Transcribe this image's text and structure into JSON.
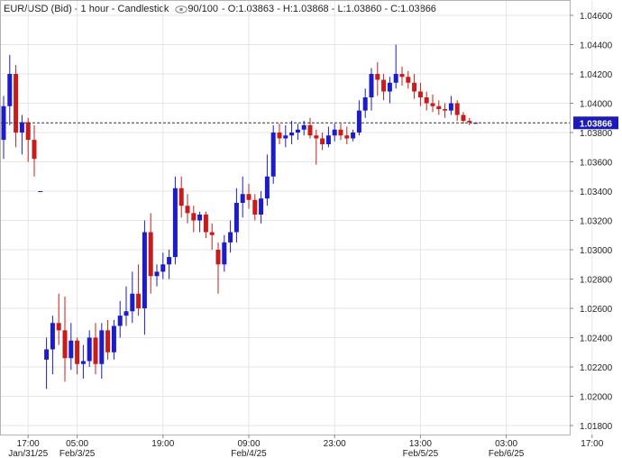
{
  "header": {
    "symbol": "EUR/USD (Bid) - 1 hour - Candlestick",
    "count": "90/100",
    "ohlc": "- O:1.03863 - H:1.03868 - L:1.03860 - C:1.03866"
  },
  "price_label": "1.03866",
  "colors": {
    "up": "#1c1cc8",
    "down": "#c81c1c",
    "grid": "#e6e6e6",
    "badge": "#1c1cb4"
  },
  "chart_data": {
    "type": "candlestick",
    "title": "EUR/USD (Bid) - 1 hour - Candlestick",
    "ylim": [
      1.0175,
      1.048
    ],
    "y_ticks": [
      "1.01800",
      "1.02000",
      "1.02200",
      "1.02400",
      "1.02600",
      "1.02800",
      "1.03000",
      "1.03200",
      "1.03400",
      "1.03600",
      "1.03800",
      "1.04000",
      "1.04200",
      "1.04400",
      "1.04600"
    ],
    "x_ticks": [
      {
        "time": "17:00",
        "date": "Jan/31/25",
        "index": 4
      },
      {
        "time": "05:00",
        "date": "Feb/3/25",
        "index": 12
      },
      {
        "time": "19:00",
        "date": "",
        "index": 26
      },
      {
        "time": "09:00",
        "date": "Feb/4/25",
        "index": 40
      },
      {
        "time": "23:00",
        "date": "",
        "index": 54
      },
      {
        "time": "13:00",
        "date": "Feb/5/25",
        "index": 68
      },
      {
        "time": "03:00",
        "date": "Feb/6/25",
        "index": 82
      },
      {
        "time": "17:00",
        "date": "",
        "index": 96
      }
    ],
    "last_price": 1.03866,
    "candles": [
      {
        "o": 1.0375,
        "h": 1.0405,
        "l": 1.0362,
        "c": 1.0398
      },
      {
        "o": 1.0398,
        "h": 1.0433,
        "l": 1.0385,
        "c": 1.042
      },
      {
        "o": 1.042,
        "h": 1.0426,
        "l": 1.037,
        "c": 1.038
      },
      {
        "o": 1.038,
        "h": 1.0392,
        "l": 1.0365,
        "c": 1.0387
      },
      {
        "o": 1.0387,
        "h": 1.039,
        "l": 1.036,
        "c": 1.0375
      },
      {
        "o": 1.0375,
        "h": 1.0385,
        "l": 1.035,
        "c": 1.0362
      },
      {
        "o": 1.034,
        "h": 1.034,
        "l": 1.034,
        "c": 1.034
      },
      {
        "o": 1.0225,
        "h": 1.024,
        "l": 1.0205,
        "c": 1.0232
      },
      {
        "o": 1.0232,
        "h": 1.0255,
        "l": 1.0215,
        "c": 1.025
      },
      {
        "o": 1.025,
        "h": 1.027,
        "l": 1.0235,
        "c": 1.0245
      },
      {
        "o": 1.0245,
        "h": 1.0268,
        "l": 1.021,
        "c": 1.0226
      },
      {
        "o": 1.0226,
        "h": 1.025,
        "l": 1.0218,
        "c": 1.0238
      },
      {
        "o": 1.0238,
        "h": 1.024,
        "l": 1.0215,
        "c": 1.0222
      },
      {
        "o": 1.0222,
        "h": 1.0235,
        "l": 1.0212,
        "c": 1.0224
      },
      {
        "o": 1.0224,
        "h": 1.0245,
        "l": 1.022,
        "c": 1.024
      },
      {
        "o": 1.024,
        "h": 1.025,
        "l": 1.0215,
        "c": 1.0222
      },
      {
        "o": 1.0222,
        "h": 1.025,
        "l": 1.0212,
        "c": 1.0245
      },
      {
        "o": 1.0245,
        "h": 1.0252,
        "l": 1.0225,
        "c": 1.023
      },
      {
        "o": 1.023,
        "h": 1.0252,
        "l": 1.0225,
        "c": 1.0248
      },
      {
        "o": 1.0248,
        "h": 1.0265,
        "l": 1.024,
        "c": 1.0255
      },
      {
        "o": 1.0255,
        "h": 1.0275,
        "l": 1.0248,
        "c": 1.0258
      },
      {
        "o": 1.0258,
        "h": 1.0285,
        "l": 1.025,
        "c": 1.027
      },
      {
        "o": 1.027,
        "h": 1.029,
        "l": 1.0255,
        "c": 1.026
      },
      {
        "o": 1.026,
        "h": 1.032,
        "l": 1.0242,
        "c": 1.0312
      },
      {
        "o": 1.0312,
        "h": 1.0325,
        "l": 1.027,
        "c": 1.0282
      },
      {
        "o": 1.0282,
        "h": 1.029,
        "l": 1.0275,
        "c": 1.0285
      },
      {
        "o": 1.0285,
        "h": 1.0298,
        "l": 1.028,
        "c": 1.029
      },
      {
        "o": 1.029,
        "h": 1.03,
        "l": 1.028,
        "c": 1.0295
      },
      {
        "o": 1.0295,
        "h": 1.035,
        "l": 1.029,
        "c": 1.0342
      },
      {
        "o": 1.0342,
        "h": 1.035,
        "l": 1.0322,
        "c": 1.033
      },
      {
        "o": 1.033,
        "h": 1.0338,
        "l": 1.0318,
        "c": 1.0325
      },
      {
        "o": 1.0325,
        "h": 1.033,
        "l": 1.0312,
        "c": 1.032
      },
      {
        "o": 1.032,
        "h": 1.0326,
        "l": 1.0312,
        "c": 1.0324
      },
      {
        "o": 1.0324,
        "h": 1.0326,
        "l": 1.0308,
        "c": 1.0312
      },
      {
        "o": 1.0312,
        "h": 1.0318,
        "l": 1.03,
        "c": 1.031
      },
      {
        "o": 1.03,
        "h": 1.0305,
        "l": 1.027,
        "c": 1.029
      },
      {
        "o": 1.029,
        "h": 1.031,
        "l": 1.0285,
        "c": 1.0305
      },
      {
        "o": 1.0305,
        "h": 1.032,
        "l": 1.0298,
        "c": 1.0312
      },
      {
        "o": 1.0312,
        "h": 1.0342,
        "l": 1.0305,
        "c": 1.0332
      },
      {
        "o": 1.0332,
        "h": 1.035,
        "l": 1.0322,
        "c": 1.0338
      },
      {
        "o": 1.0338,
        "h": 1.0345,
        "l": 1.0328,
        "c": 1.0334
      },
      {
        "o": 1.0334,
        "h": 1.0338,
        "l": 1.032,
        "c": 1.0324
      },
      {
        "o": 1.0324,
        "h": 1.034,
        "l": 1.0318,
        "c": 1.0335
      },
      {
        "o": 1.0335,
        "h": 1.0365,
        "l": 1.033,
        "c": 1.035
      },
      {
        "o": 1.035,
        "h": 1.0385,
        "l": 1.0345,
        "c": 1.038
      },
      {
        "o": 1.038,
        "h": 1.0386,
        "l": 1.0372,
        "c": 1.0376
      },
      {
        "o": 1.0376,
        "h": 1.0385,
        "l": 1.037,
        "c": 1.0378
      },
      {
        "o": 1.0378,
        "h": 1.0388,
        "l": 1.0372,
        "c": 1.038
      },
      {
        "o": 1.038,
        "h": 1.0386,
        "l": 1.0375,
        "c": 1.0382
      },
      {
        "o": 1.0382,
        "h": 1.0388,
        "l": 1.0378,
        "c": 1.0385
      },
      {
        "o": 1.0385,
        "h": 1.039,
        "l": 1.0376,
        "c": 1.0378
      },
      {
        "o": 1.0378,
        "h": 1.0382,
        "l": 1.0358,
        "c": 1.0376
      },
      {
        "o": 1.0376,
        "h": 1.038,
        "l": 1.0368,
        "c": 1.0372
      },
      {
        "o": 1.0372,
        "h": 1.0384,
        "l": 1.037,
        "c": 1.0378
      },
      {
        "o": 1.0378,
        "h": 1.0386,
        "l": 1.0374,
        "c": 1.0382
      },
      {
        "o": 1.0382,
        "h": 1.0386,
        "l": 1.0375,
        "c": 1.0378
      },
      {
        "o": 1.0378,
        "h": 1.0384,
        "l": 1.0372,
        "c": 1.0376
      },
      {
        "o": 1.0376,
        "h": 1.0382,
        "l": 1.0374,
        "c": 1.038
      },
      {
        "o": 1.038,
        "h": 1.0402,
        "l": 1.0378,
        "c": 1.0395
      },
      {
        "o": 1.0395,
        "h": 1.041,
        "l": 1.039,
        "c": 1.0404
      },
      {
        "o": 1.0404,
        "h": 1.0424,
        "l": 1.0395,
        "c": 1.042
      },
      {
        "o": 1.042,
        "h": 1.0428,
        "l": 1.0405,
        "c": 1.0416
      },
      {
        "o": 1.0416,
        "h": 1.042,
        "l": 1.0402,
        "c": 1.0408
      },
      {
        "o": 1.0408,
        "h": 1.0418,
        "l": 1.04,
        "c": 1.0414
      },
      {
        "o": 1.0414,
        "h": 1.044,
        "l": 1.041,
        "c": 1.042
      },
      {
        "o": 1.042,
        "h": 1.0425,
        "l": 1.0412,
        "c": 1.0418
      },
      {
        "o": 1.0418,
        "h": 1.0422,
        "l": 1.041,
        "c": 1.0414
      },
      {
        "o": 1.0414,
        "h": 1.042,
        "l": 1.0403,
        "c": 1.0408
      },
      {
        "o": 1.0408,
        "h": 1.0414,
        "l": 1.0398,
        "c": 1.0404
      },
      {
        "o": 1.0404,
        "h": 1.0408,
        "l": 1.0395,
        "c": 1.04
      },
      {
        "o": 1.04,
        "h": 1.0406,
        "l": 1.0394,
        "c": 1.0398
      },
      {
        "o": 1.0398,
        "h": 1.0402,
        "l": 1.0392,
        "c": 1.0396
      },
      {
        "o": 1.0396,
        "h": 1.04,
        "l": 1.039,
        "c": 1.0395
      },
      {
        "o": 1.0395,
        "h": 1.0405,
        "l": 1.0392,
        "c": 1.04
      },
      {
        "o": 1.04,
        "h": 1.0402,
        "l": 1.0388,
        "c": 1.0392
      },
      {
        "o": 1.0392,
        "h": 1.0394,
        "l": 1.0386,
        "c": 1.0388
      },
      {
        "o": 1.0388,
        "h": 1.039,
        "l": 1.0385,
        "c": 1.0387
      },
      {
        "o": 1.03863,
        "h": 1.03868,
        "l": 1.0386,
        "c": 1.03866
      }
    ]
  }
}
